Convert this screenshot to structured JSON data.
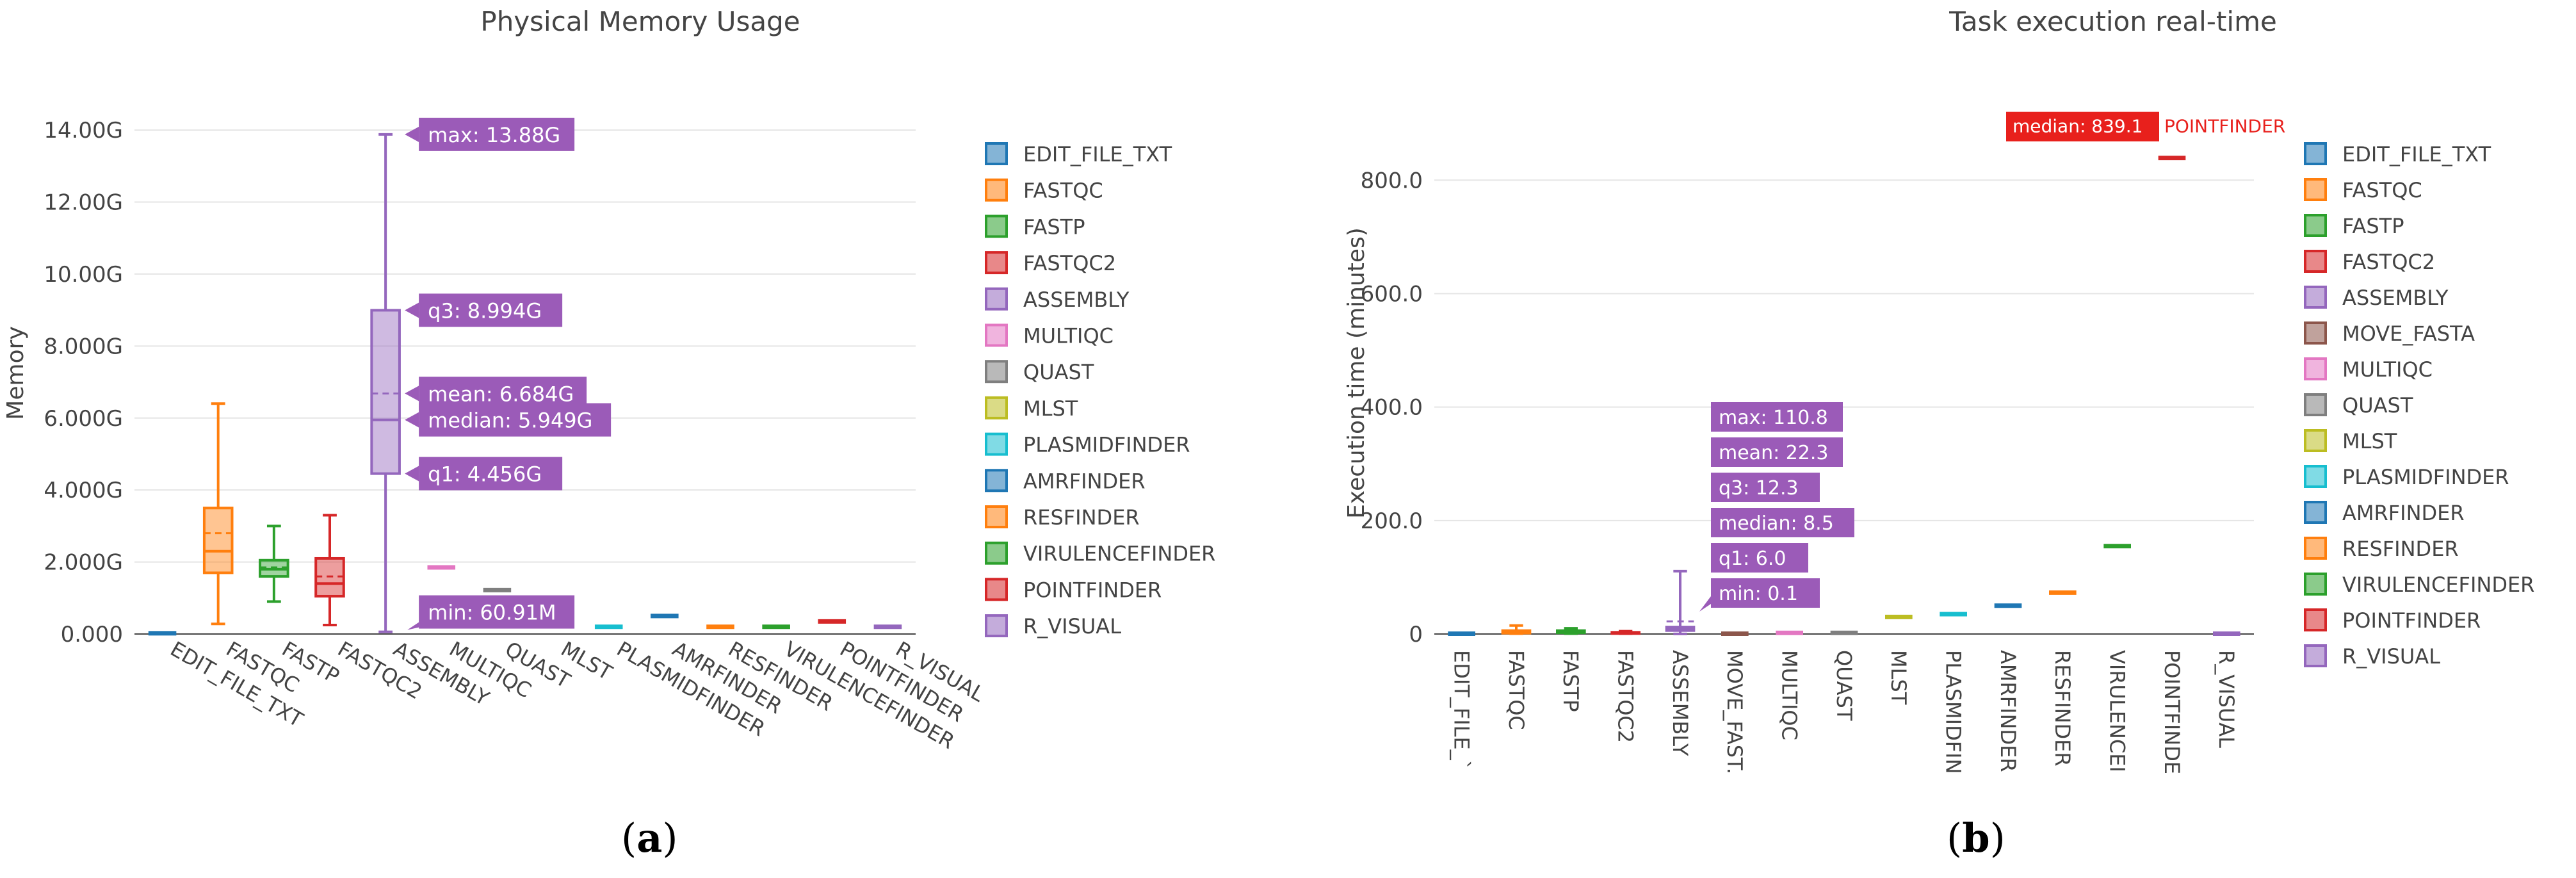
{
  "chart_data": [
    {
      "type": "box",
      "title": "Physical Memory Usage",
      "ylabel": "Memory",
      "xlabel": "",
      "caption": "(a)",
      "caption_letter": "a",
      "y_unit": "G",
      "ylim": [
        0,
        14.5
      ],
      "ytick_labels": [
        "0.000",
        "2.000G",
        "4.000G",
        "6.000G",
        "8.000G",
        "10.00G",
        "12.00G",
        "14.00G"
      ],
      "ytick_values": [
        0,
        2,
        4,
        6,
        8,
        10,
        12,
        14
      ],
      "grid": "horizontal",
      "legend_placement": "right",
      "categories": [
        "EDIT_FILE_TXT",
        "FASTQC",
        "FASTP",
        "FASTQC2",
        "ASSEMBLY",
        "MULTIQC",
        "QUAST",
        "MLST",
        "PLASMIDFINDER",
        "AMRFINDER",
        "RESFINDER",
        "VIRULENCEFINDER",
        "POINTFINDER",
        "R_VISUAL"
      ],
      "series": [
        {
          "name": "EDIT_FILE_TXT",
          "color": "#1f77b4",
          "stats": {
            "min": 0.02,
            "q1": 0.02,
            "median": 0.02,
            "mean": 0.02,
            "q3": 0.02,
            "max": 0.02
          }
        },
        {
          "name": "FASTQC",
          "color": "#ff7f0e",
          "stats": {
            "min": 0.28,
            "q1": 1.7,
            "median": 2.3,
            "mean": 2.8,
            "q3": 3.5,
            "max": 6.4
          }
        },
        {
          "name": "FASTP",
          "color": "#2ca02c",
          "stats": {
            "min": 0.9,
            "q1": 1.6,
            "median": 1.8,
            "mean": 1.85,
            "q3": 2.05,
            "max": 3.0
          }
        },
        {
          "name": "FASTQC2",
          "color": "#d62728",
          "stats": {
            "min": 0.25,
            "q1": 1.05,
            "median": 1.4,
            "mean": 1.6,
            "q3": 2.1,
            "max": 3.3
          }
        },
        {
          "name": "ASSEMBLY",
          "color": "#9467bd",
          "stats": {
            "min": 0.06091,
            "q1": 4.456,
            "median": 5.949,
            "mean": 6.684,
            "q3": 8.994,
            "max": 13.88
          }
        },
        {
          "name": "MULTIQC",
          "color": "#e377c2",
          "stats": {
            "min": 1.85,
            "q1": 1.85,
            "median": 1.85,
            "mean": 1.85,
            "q3": 1.85,
            "max": 1.85
          }
        },
        {
          "name": "QUAST",
          "color": "#7f7f7f",
          "stats": {
            "min": 1.22,
            "q1": 1.22,
            "median": 1.22,
            "mean": 1.22,
            "q3": 1.22,
            "max": 1.22
          }
        },
        {
          "name": "MLST",
          "color": "#bcbd22",
          "stats": {
            "min": 0.3,
            "q1": 0.3,
            "median": 0.3,
            "mean": 0.3,
            "q3": 0.3,
            "max": 0.3
          }
        },
        {
          "name": "PLASMIDFINDER",
          "color": "#17becf",
          "stats": {
            "min": 0.2,
            "q1": 0.2,
            "median": 0.2,
            "mean": 0.2,
            "q3": 0.2,
            "max": 0.2
          }
        },
        {
          "name": "AMRFINDER",
          "color": "#1f77b4",
          "stats": {
            "min": 0.5,
            "q1": 0.5,
            "median": 0.5,
            "mean": 0.5,
            "q3": 0.5,
            "max": 0.5
          }
        },
        {
          "name": "RESFINDER",
          "color": "#ff7f0e",
          "stats": {
            "min": 0.2,
            "q1": 0.2,
            "median": 0.2,
            "mean": 0.2,
            "q3": 0.2,
            "max": 0.2
          }
        },
        {
          "name": "VIRULENCEFINDER",
          "color": "#2ca02c",
          "stats": {
            "min": 0.2,
            "q1": 0.2,
            "median": 0.2,
            "mean": 0.2,
            "q3": 0.2,
            "max": 0.2
          }
        },
        {
          "name": "POINTFINDER",
          "color": "#d62728",
          "stats": {
            "min": 0.35,
            "q1": 0.35,
            "median": 0.35,
            "mean": 0.35,
            "q3": 0.35,
            "max": 0.35
          }
        },
        {
          "name": "R_VISUAL",
          "color": "#9467bd",
          "stats": {
            "min": 0.2,
            "q1": 0.2,
            "median": 0.2,
            "mean": 0.2,
            "q3": 0.2,
            "max": 0.2
          }
        }
      ],
      "hover": {
        "series": "ASSEMBLY",
        "labels": [
          {
            "stat": "max",
            "text": "max: 13.88G"
          },
          {
            "stat": "q3",
            "text": "q3: 8.994G"
          },
          {
            "stat": "mean",
            "text": "mean: 6.684G"
          },
          {
            "stat": "median",
            "text": "median: 5.949G"
          },
          {
            "stat": "q1",
            "text": "q1: 4.456G"
          },
          {
            "stat": "min",
            "text": "min: 60.91M"
          }
        ]
      }
    },
    {
      "type": "box",
      "title": "Task execution real-time",
      "ylabel": "Execution time (minutes)",
      "xlabel": "",
      "caption": "(b)",
      "caption_letter": "b",
      "ylim": [
        0,
        920
      ],
      "ytick_labels": [
        "0",
        "200.0",
        "400.0",
        "600.0",
        "800.0"
      ],
      "ytick_values": [
        0,
        200,
        400,
        600,
        800
      ],
      "grid": "horizontal",
      "legend_placement": "right",
      "categories": [
        "EDIT_FILE_TXT",
        "FASTQC",
        "FASTP",
        "FASTQC2",
        "ASSEMBLY",
        "MOVE_FASTA",
        "MULTIQC",
        "QUAST",
        "MLST",
        "PLASMIDFINDER",
        "AMRFINDER",
        "RESFINDER",
        "VIRULENCEFINDER",
        "POINTFINDER",
        "R_VISUAL"
      ],
      "tick_labels": [
        "EDIT_FILE_`",
        "FASTQC",
        "FASTP",
        "FASTQC2",
        "ASSEMBLY",
        "MOVE_FAST.",
        "MULTIQC",
        "QUAST",
        "MLST",
        "PLASMIDFIN",
        "AMRFINDER",
        "RESFINDER",
        "VIRULENCEI",
        "POINTFINDE",
        "R_VISUAL"
      ],
      "series": [
        {
          "name": "EDIT_FILE_TXT",
          "color": "#1f77b4",
          "stats": {
            "min": 0.5,
            "q1": 0.5,
            "median": 0.5,
            "mean": 0.5,
            "q3": 0.5,
            "max": 0.5
          }
        },
        {
          "name": "FASTQC",
          "color": "#ff7f0e",
          "stats": {
            "min": 0.5,
            "q1": 1.5,
            "median": 3,
            "mean": 4,
            "q3": 6,
            "max": 15
          }
        },
        {
          "name": "FASTP",
          "color": "#2ca02c",
          "stats": {
            "min": 0.5,
            "q1": 2,
            "median": 4,
            "mean": 4.5,
            "q3": 6,
            "max": 10
          }
        },
        {
          "name": "FASTQC2",
          "color": "#d62728",
          "stats": {
            "min": 0.5,
            "q1": 1,
            "median": 2,
            "mean": 2,
            "q3": 3,
            "max": 5
          }
        },
        {
          "name": "ASSEMBLY",
          "color": "#9467bd",
          "stats": {
            "min": 0.1,
            "q1": 6.0,
            "median": 8.5,
            "mean": 22.3,
            "q3": 12.3,
            "max": 110.8
          }
        },
        {
          "name": "MOVE_FASTA",
          "color": "#8c564b",
          "stats": {
            "min": 0.5,
            "q1": 0.5,
            "median": 0.5,
            "mean": 0.5,
            "q3": 0.5,
            "max": 0.5
          }
        },
        {
          "name": "MULTIQC",
          "color": "#e377c2",
          "stats": {
            "min": 2,
            "q1": 2,
            "median": 2,
            "mean": 2,
            "q3": 2,
            "max": 2
          }
        },
        {
          "name": "QUAST",
          "color": "#7f7f7f",
          "stats": {
            "min": 2,
            "q1": 2,
            "median": 2,
            "mean": 2,
            "q3": 2,
            "max": 2
          }
        },
        {
          "name": "MLST",
          "color": "#bcbd22",
          "stats": {
            "min": 30,
            "q1": 30,
            "median": 30,
            "mean": 30,
            "q3": 30,
            "max": 30
          }
        },
        {
          "name": "PLASMIDFINDER",
          "color": "#17becf",
          "stats": {
            "min": 35,
            "q1": 35,
            "median": 35,
            "mean": 35,
            "q3": 35,
            "max": 35
          }
        },
        {
          "name": "AMRFINDER",
          "color": "#1f77b4",
          "stats": {
            "min": 50,
            "q1": 50,
            "median": 50,
            "mean": 50,
            "q3": 50,
            "max": 50
          }
        },
        {
          "name": "RESFINDER",
          "color": "#ff7f0e",
          "stats": {
            "min": 73,
            "q1": 73,
            "median": 73,
            "mean": 73,
            "q3": 73,
            "max": 73
          }
        },
        {
          "name": "VIRULENCEFINDER",
          "color": "#2ca02c",
          "stats": {
            "min": 155,
            "q1": 155,
            "median": 155,
            "mean": 155,
            "q3": 155,
            "max": 155
          }
        },
        {
          "name": "POINTFINDER",
          "color": "#d62728",
          "stats": {
            "min": 839.1,
            "q1": 839.1,
            "median": 839.1,
            "mean": 839.1,
            "q3": 839.1,
            "max": 839.1
          }
        },
        {
          "name": "R_VISUAL",
          "color": "#9467bd",
          "stats": {
            "min": 0.5,
            "q1": 0.5,
            "median": 0.5,
            "mean": 0.5,
            "q3": 0.5,
            "max": 0.5
          }
        }
      ],
      "hover": {
        "series": "ASSEMBLY",
        "labels": [
          {
            "stat": "max",
            "text": "max: 110.8"
          },
          {
            "stat": "mean",
            "text": "mean: 22.3"
          },
          {
            "stat": "q3",
            "text": "q3: 12.3"
          },
          {
            "stat": "median",
            "text": "median: 8.5"
          },
          {
            "stat": "q1",
            "text": "q1: 6.0"
          },
          {
            "stat": "min",
            "text": "min: 0.1"
          }
        ]
      },
      "hover2": {
        "series": "POINTFINDER",
        "text": "median: 839.1",
        "trace_name": "POINTFINDER"
      }
    }
  ]
}
